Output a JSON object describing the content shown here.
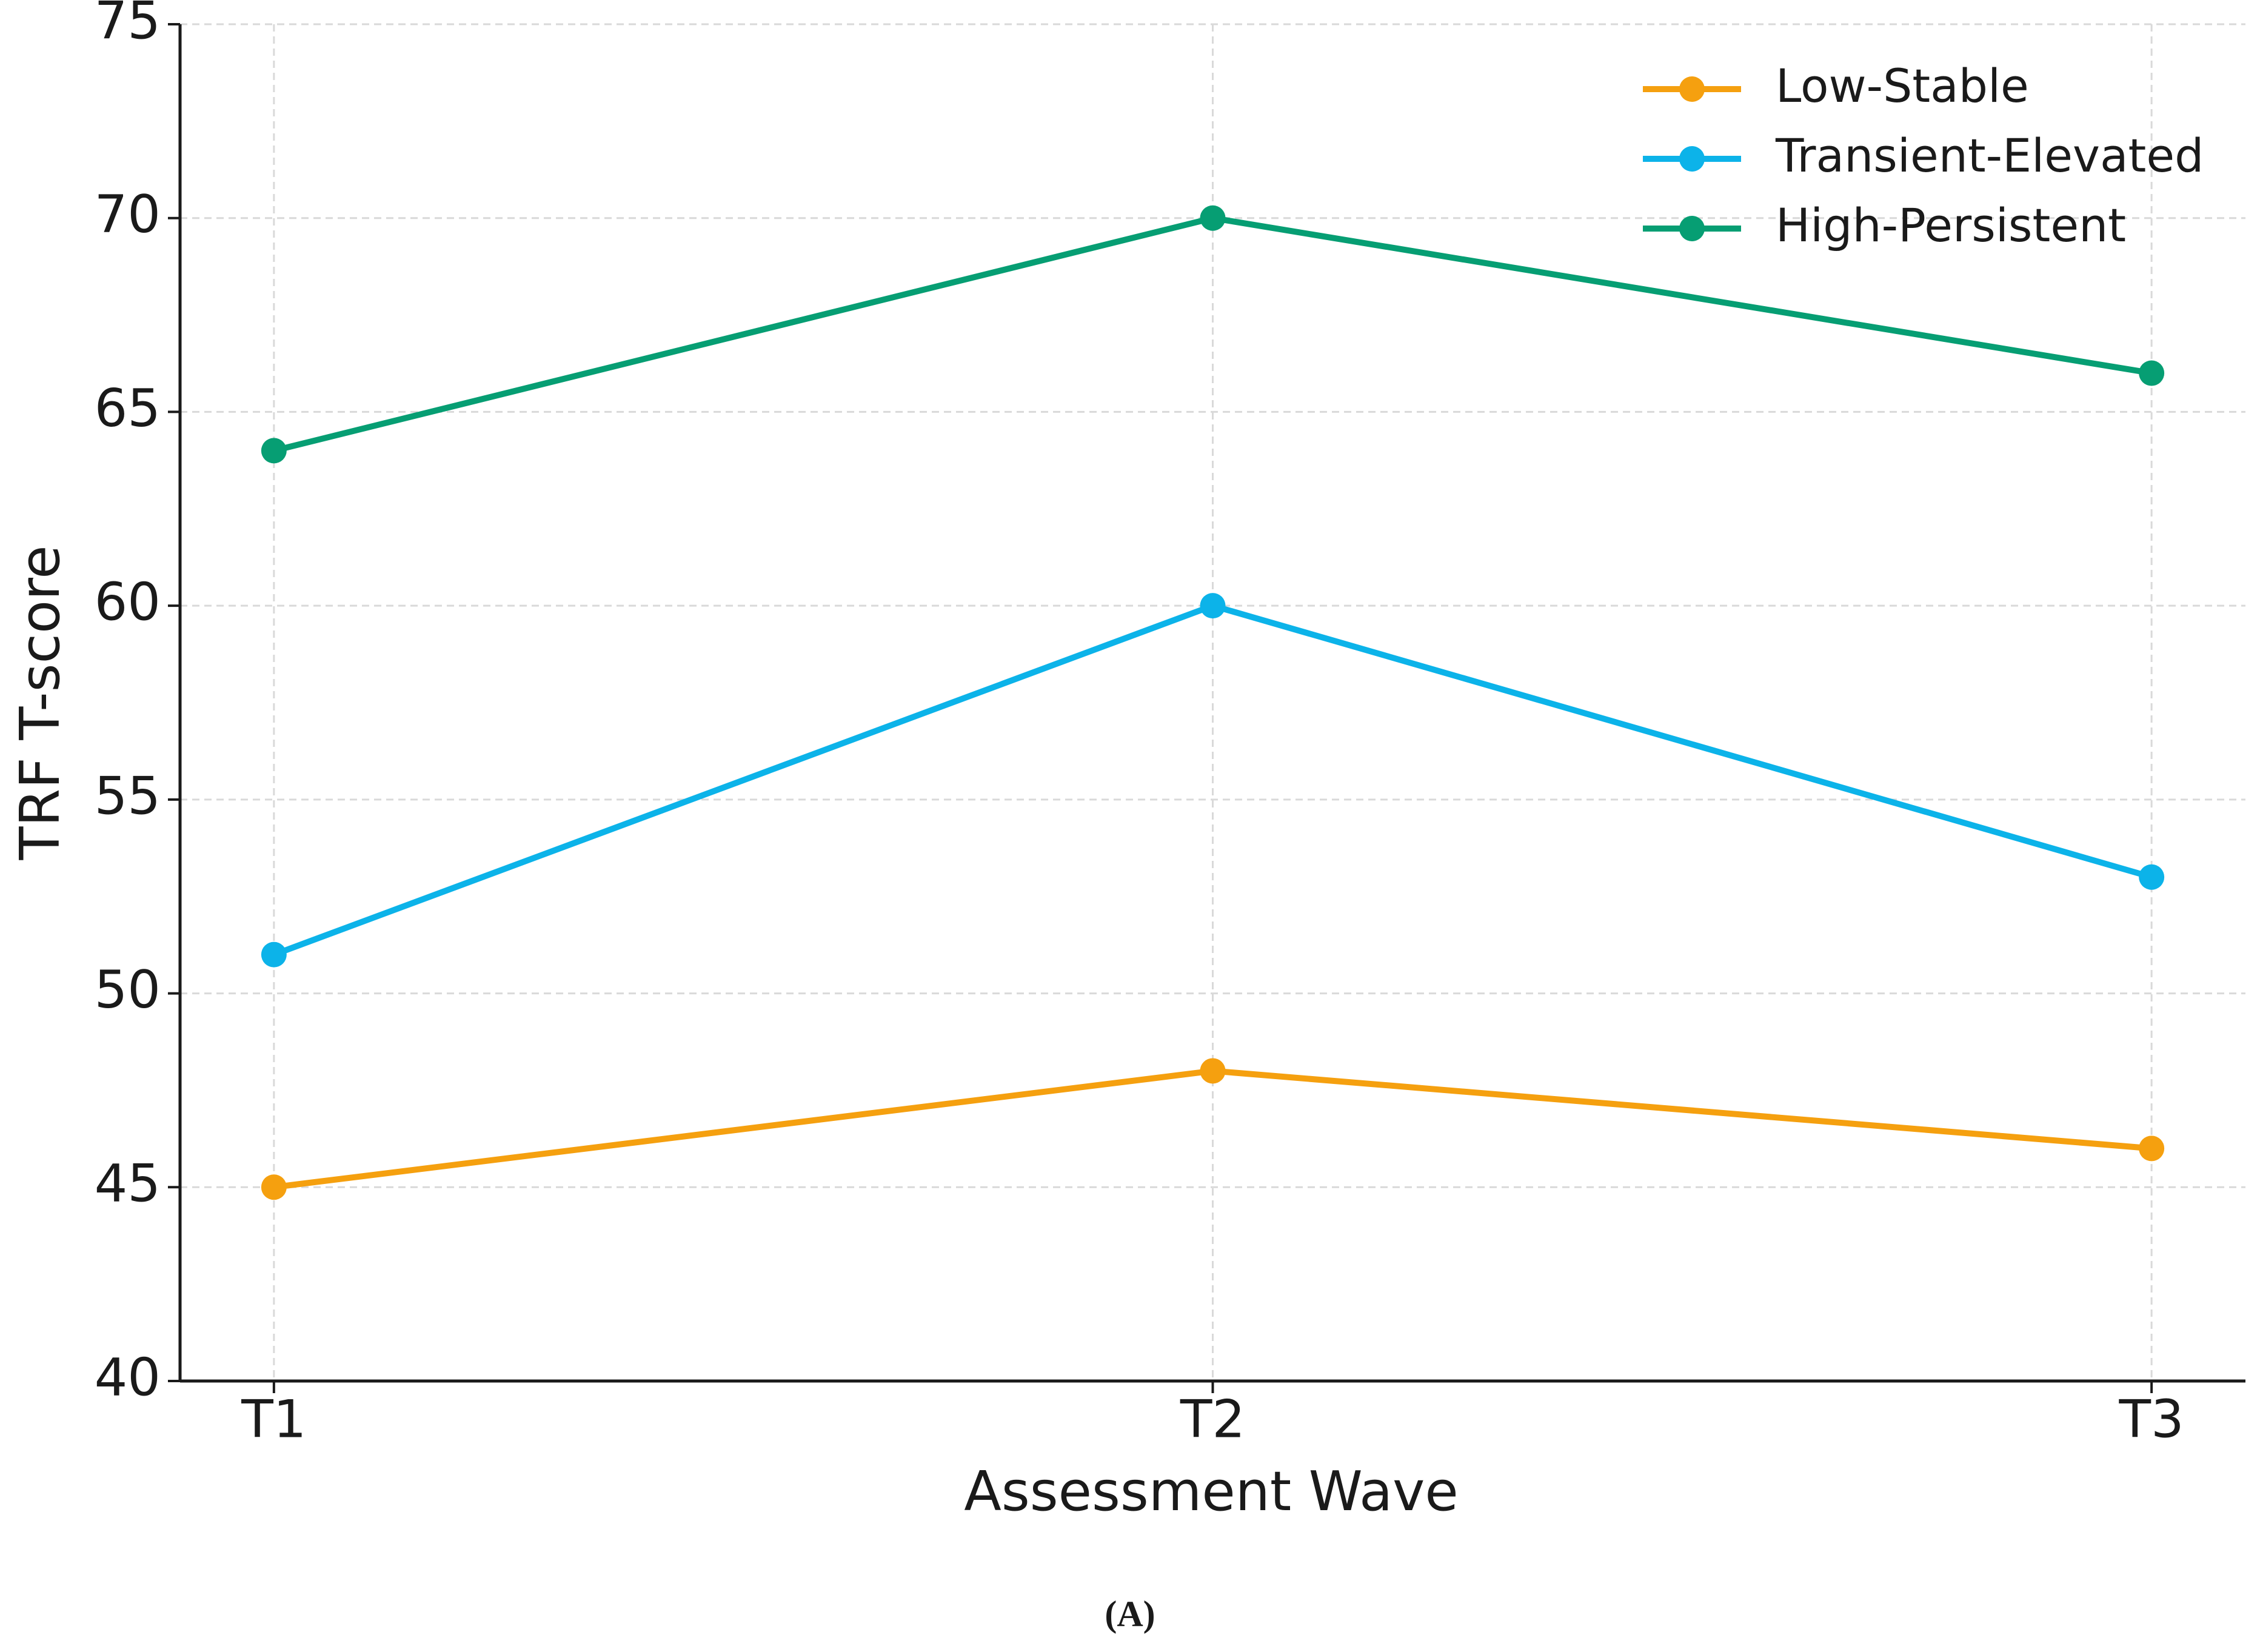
{
  "chart_data": {
    "type": "line",
    "xlabel": "Assessment Wave",
    "ylabel": "TRF T-score",
    "categories": [
      "T1",
      "T2",
      "T3"
    ],
    "series": [
      {
        "name": "Low-Stable",
        "color": "#f5a00f",
        "values": [
          45,
          48,
          46
        ]
      },
      {
        "name": "Transient-Elevated",
        "color": "#0cb3e9",
        "values": [
          51,
          60,
          53
        ]
      },
      {
        "name": "High-Persistent",
        "color": "#069e73",
        "values": [
          64,
          70,
          66
        ]
      }
    ],
    "ylim": [
      40,
      75
    ],
    "yticks": [
      40,
      45,
      50,
      55,
      60,
      65,
      70,
      75
    ],
    "grid": true,
    "legend": "upper right",
    "caption": "(A)"
  }
}
